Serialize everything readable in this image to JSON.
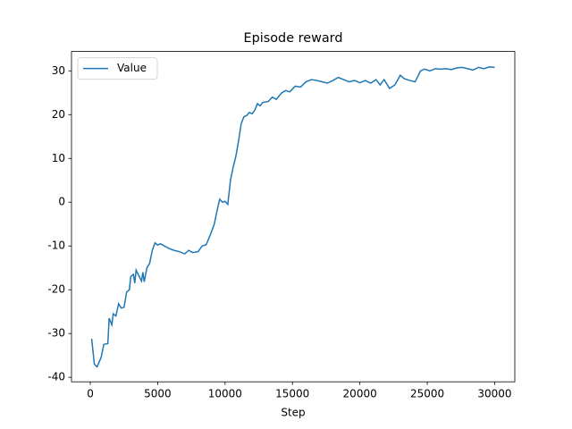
{
  "chart_data": {
    "type": "line",
    "title": "Episode reward",
    "x_label": "Step",
    "x": [
      100,
      300,
      500,
      800,
      1000,
      1300,
      1400,
      1600,
      1700,
      1900,
      2100,
      2300,
      2500,
      2700,
      2900,
      3000,
      3200,
      3300,
      3400,
      3600,
      3800,
      3900,
      4000,
      4200,
      4400,
      4600,
      4800,
      5000,
      5200,
      5500,
      5800,
      6200,
      6600,
      7000,
      7300,
      7600,
      8000,
      8300,
      8600,
      8900,
      9200,
      9400,
      9600,
      9800,
      10000,
      10200,
      10400,
      10600,
      10800,
      11000,
      11200,
      11400,
      11600,
      11800,
      12000,
      12200,
      12400,
      12600,
      12800,
      13200,
      13500,
      13800,
      14200,
      14500,
      14800,
      15200,
      15600,
      16000,
      16400,
      16800,
      17200,
      17600,
      18000,
      18400,
      18800,
      19200,
      19600,
      20000,
      20400,
      20800,
      21200,
      21500,
      21800,
      22200,
      22600,
      23000,
      23300,
      23700,
      24100,
      24500,
      24800,
      25200,
      25600,
      26000,
      26400,
      26800,
      27200,
      27600,
      28000,
      28400,
      28800,
      29200,
      29600,
      30000
    ],
    "series": [
      {
        "name": "Value",
        "color": "#1f77b4",
        "values": [
          -31.2,
          -37.0,
          -37.6,
          -35.5,
          -32.5,
          -32.3,
          -26.5,
          -28.0,
          -25.5,
          -26.0,
          -23.2,
          -24.2,
          -24.0,
          -20.5,
          -20.0,
          -17.0,
          -16.5,
          -18.5,
          -15.5,
          -16.8,
          -18.0,
          -16.0,
          -18.2,
          -15.0,
          -14.0,
          -11.0,
          -9.3,
          -9.8,
          -9.5,
          -10.0,
          -10.5,
          -11.0,
          -11.3,
          -11.8,
          -11.0,
          -11.5,
          -11.3,
          -10.0,
          -9.7,
          -7.5,
          -5.0,
          -2.0,
          0.7,
          0.0,
          0.2,
          -0.5,
          5.0,
          8.0,
          10.5,
          14.0,
          18.0,
          19.5,
          19.8,
          20.5,
          20.2,
          21.0,
          22.5,
          22.0,
          22.8,
          23.0,
          24.0,
          23.5,
          25.0,
          25.5,
          25.2,
          26.5,
          26.3,
          27.5,
          28.0,
          27.8,
          27.5,
          27.2,
          27.8,
          28.5,
          28.0,
          27.5,
          27.8,
          27.3,
          27.8,
          27.2,
          28.0,
          26.8,
          28.0,
          26.0,
          26.8,
          29.0,
          28.2,
          27.8,
          27.5,
          30.0,
          30.4,
          30.0,
          30.5,
          30.4,
          30.5,
          30.3,
          30.7,
          30.8,
          30.5,
          30.2,
          30.8,
          30.5,
          30.9,
          30.8
        ]
      }
    ],
    "xlim": [
      -1395,
      31495
    ],
    "xticks": [
      0,
      5000,
      10000,
      15000,
      20000,
      25000,
      30000
    ],
    "ylim": [
      -41.03,
      34.43
    ],
    "yticks": [
      -40,
      -30,
      -20,
      -10,
      0,
      10,
      20,
      30
    ],
    "grid": false,
    "legend": "upper left"
  }
}
